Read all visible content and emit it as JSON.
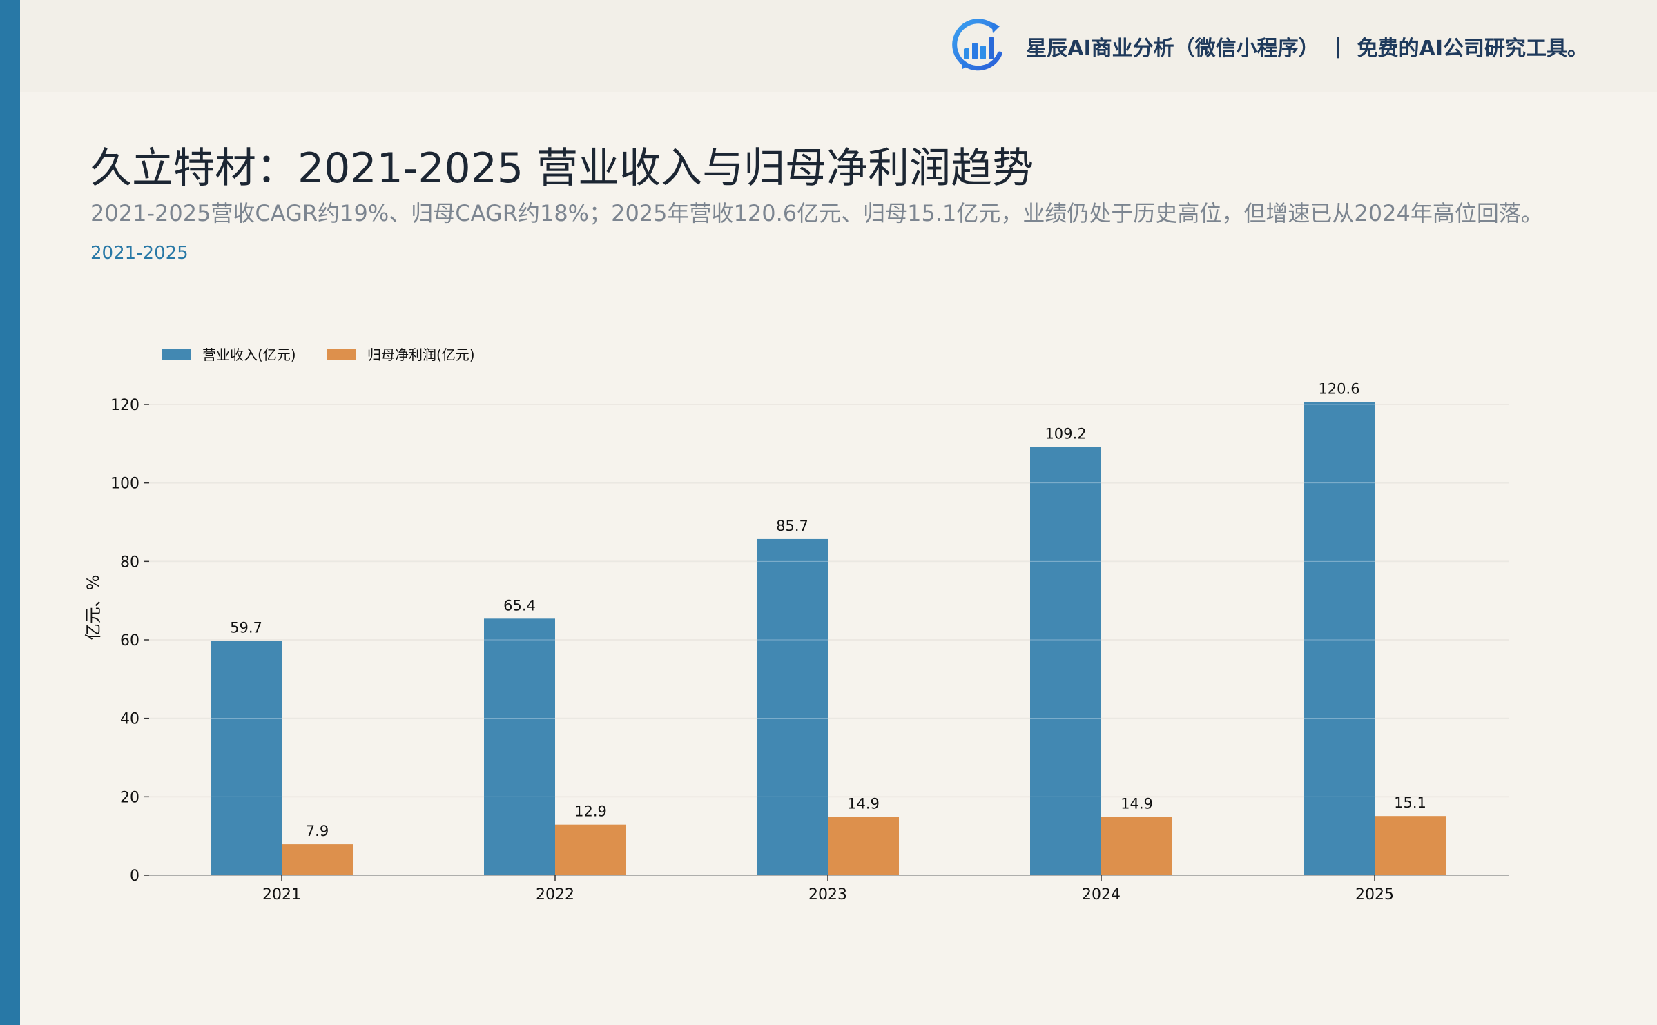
{
  "header": {
    "brand_name": "星辰AI商业分析（微信小程序）",
    "separator": "|",
    "tagline": "免费的AI公司研究工具。",
    "logo_icon": "bar-chart-logo-icon"
  },
  "page": {
    "title": "久立特材：2021-2025 营业收入与归母净利润趋势",
    "subtitle": "2021-2025营收CAGR约19%、归母CAGR约18%；2025年营收120.6亿元、归母15.1亿元，业绩仍处于历史高位，但增速已从2024年高位回落。",
    "period": "2021-2025"
  },
  "colors": {
    "accent": "#2878a6",
    "revenue": "#4288b2",
    "profit": "#dd904c",
    "background": "#f6f3ed"
  },
  "chart_data": {
    "type": "bar",
    "categories": [
      "2021",
      "2022",
      "2023",
      "2024",
      "2025"
    ],
    "series": [
      {
        "name": "营业收入(亿元)",
        "values": [
          59.7,
          65.4,
          85.7,
          109.2,
          120.6
        ],
        "labels": [
          "59.7",
          "65.4",
          "85.7",
          "109.2",
          "120.6"
        ]
      },
      {
        "name": "归母净利润(亿元)",
        "values": [
          7.9,
          12.9,
          14.9,
          14.9,
          15.1
        ],
        "labels": [
          "7.9",
          "12.9",
          "14.9",
          "14.9",
          "15.1"
        ]
      }
    ],
    "ylabel": "亿元、%",
    "ylim": [
      0,
      120
    ],
    "yticks": [
      "0",
      "20",
      "40",
      "60",
      "80",
      "100",
      "120"
    ],
    "grid": true,
    "legend": "top-left"
  }
}
